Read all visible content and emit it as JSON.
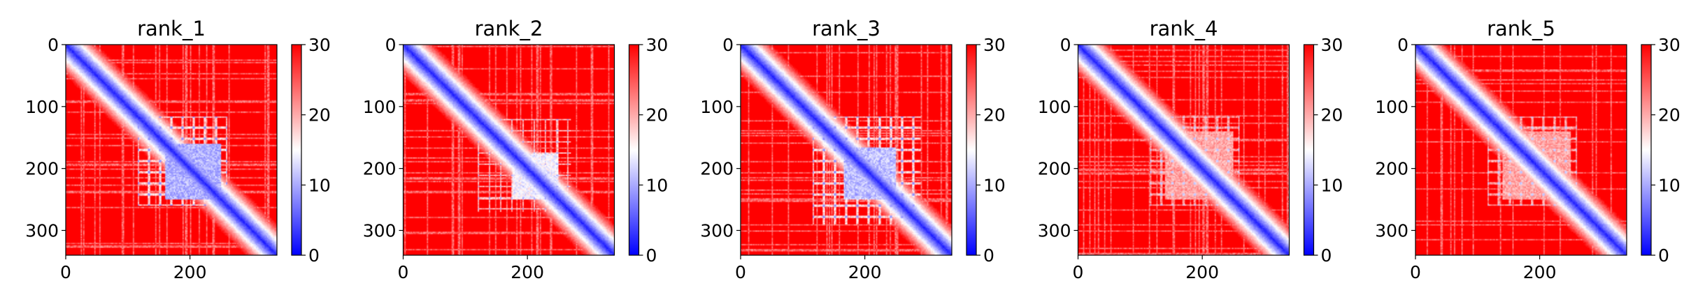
{
  "figure": {
    "panels": [
      {
        "title": "rank_1"
      },
      {
        "title": "rank_2"
      },
      {
        "title": "rank_3"
      },
      {
        "title": "rank_4"
      },
      {
        "title": "rank_5"
      }
    ]
  },
  "chart_data": [
    {
      "type": "heatmap",
      "title": "rank_1",
      "colormap": "bwr",
      "colorbar_range": [
        0,
        30
      ],
      "colorbar_ticks": [
        0,
        10,
        20,
        30
      ],
      "xlim": [
        0,
        340
      ],
      "ylim": [
        340,
        0
      ],
      "xticks": [
        0,
        200
      ],
      "yticks": [
        0,
        100,
        200,
        300
      ],
      "features": [
        {
          "kind": "diagonal",
          "value": 2
        },
        {
          "kind": "block",
          "range": [
            160,
            250
          ],
          "value": 8
        },
        {
          "kind": "grid_lines",
          "range": [
            115,
            260
          ],
          "value": 15
        }
      ]
    },
    {
      "type": "heatmap",
      "title": "rank_2",
      "colormap": "bwr",
      "colorbar_range": [
        0,
        30
      ],
      "colorbar_ticks": [
        0,
        10,
        20,
        30
      ],
      "xlim": [
        0,
        340
      ],
      "ylim": [
        340,
        0
      ],
      "xticks": [
        0,
        200
      ],
      "yticks": [
        0,
        100,
        200,
        300
      ],
      "features": [
        {
          "kind": "diagonal",
          "value": 2
        },
        {
          "kind": "block",
          "range": [
            175,
            250
          ],
          "value": 12
        },
        {
          "kind": "grid_lines",
          "range": [
            120,
            270
          ],
          "value": 16
        }
      ]
    },
    {
      "type": "heatmap",
      "title": "rank_3",
      "colormap": "bwr",
      "colorbar_range": [
        0,
        30
      ],
      "colorbar_ticks": [
        0,
        10,
        20,
        30
      ],
      "xlim": [
        0,
        340
      ],
      "ylim": [
        340,
        0
      ],
      "xticks": [
        0,
        200
      ],
      "yticks": [
        0,
        100,
        200,
        300
      ],
      "features": [
        {
          "kind": "diagonal",
          "value": 2
        },
        {
          "kind": "block",
          "range": [
            165,
            250
          ],
          "value": 9
        },
        {
          "kind": "grid_lines",
          "range": [
            115,
            290
          ],
          "value": 15
        }
      ]
    },
    {
      "type": "heatmap",
      "title": "rank_4",
      "colormap": "bwr",
      "colorbar_range": [
        0,
        30
      ],
      "colorbar_ticks": [
        0,
        10,
        20,
        30
      ],
      "xlim": [
        0,
        340
      ],
      "ylim": [
        340,
        0
      ],
      "xticks": [
        0,
        200
      ],
      "yticks": [
        0,
        100,
        200,
        300
      ],
      "features": [
        {
          "kind": "diagonal",
          "value": 2
        },
        {
          "kind": "block",
          "range": [
            140,
            250
          ],
          "value": 18
        },
        {
          "kind": "grid_lines",
          "range": [
            115,
            260
          ],
          "value": 18
        }
      ]
    },
    {
      "type": "heatmap",
      "title": "rank_5",
      "colormap": "bwr",
      "colorbar_range": [
        0,
        30
      ],
      "colorbar_ticks": [
        0,
        10,
        20,
        30
      ],
      "xlim": [
        0,
        340
      ],
      "ylim": [
        340,
        0
      ],
      "xticks": [
        0,
        200
      ],
      "yticks": [
        0,
        100,
        200,
        300
      ],
      "features": [
        {
          "kind": "diagonal",
          "value": 2
        },
        {
          "kind": "block",
          "range": [
            140,
            250
          ],
          "value": 18
        },
        {
          "kind": "grid_lines",
          "range": [
            115,
            260
          ],
          "value": 18
        }
      ]
    }
  ]
}
